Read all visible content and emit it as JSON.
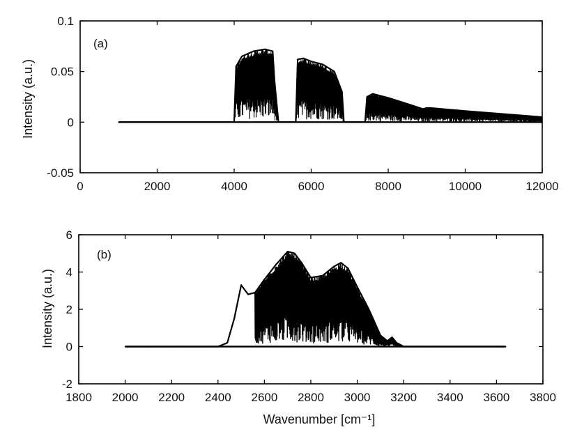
{
  "chart_data": [
    {
      "type": "line",
      "panel_label": "(a)",
      "ylabel": "Intensity (a.u.)",
      "xlabel": "",
      "xlim": [
        0,
        12000
      ],
      "ylim": [
        -0.05,
        0.1
      ],
      "xticks": [
        0,
        2000,
        4000,
        6000,
        8000,
        10000,
        12000
      ],
      "xtick_labels": [
        "0",
        "2000",
        "4000",
        "6000",
        "8000",
        "10000",
        "12000"
      ],
      "yticks": [
        -0.05,
        0,
        0.05,
        0.1
      ],
      "ytick_labels": [
        "-0.05",
        "0",
        "0.05",
        "0.1"
      ],
      "grid": false,
      "line_color": "#000000",
      "series": [
        {
          "x": [
            1000,
            1500,
            2000,
            3000,
            4000,
            4050,
            4200,
            4500,
            4800,
            5000,
            5050,
            5150,
            5600,
            5650,
            5800,
            6000,
            6300,
            6600,
            6800,
            6850,
            7400,
            7450,
            7600,
            8000,
            8500,
            8900,
            9000,
            9100,
            10000,
            11000,
            12000
          ],
          "y": [
            0,
            0,
            0,
            0,
            0,
            0.055,
            0.065,
            0.07,
            0.072,
            0.07,
            0.04,
            0,
            0,
            0.062,
            0.063,
            0.06,
            0.057,
            0.05,
            0.03,
            0,
            0,
            0.025,
            0.028,
            0.024,
            0.018,
            0.013,
            0.014,
            0.014,
            0.011,
            0.008,
            0.005
          ]
        }
      ]
    },
    {
      "type": "line",
      "panel_label": "(b)",
      "ylabel": "Intensity (a.u.)",
      "xlabel": "Wavenumber [cm⁻¹]",
      "xlim": [
        1800,
        3800
      ],
      "ylim": [
        -2,
        6
      ],
      "xticks": [
        1800,
        2000,
        2200,
        2400,
        2600,
        2800,
        3000,
        3200,
        3400,
        3600,
        3800
      ],
      "xtick_labels": [
        "1800",
        "2000",
        "2200",
        "2400",
        "2600",
        "2800",
        "3000",
        "3200",
        "3400",
        "3600",
        "3800"
      ],
      "yticks": [
        -2,
        0,
        2,
        4,
        6
      ],
      "ytick_labels": [
        "-2",
        "0",
        "2",
        "4",
        "6"
      ],
      "grid": false,
      "line_color": "#000000",
      "series": [
        {
          "x": [
            2000,
            2400,
            2440,
            2470,
            2500,
            2530,
            2560,
            2600,
            2650,
            2700,
            2730,
            2760,
            2800,
            2850,
            2900,
            2930,
            2960,
            3000,
            3050,
            3100,
            3130,
            3150,
            3170,
            3200,
            3640
          ],
          "y": [
            0,
            0,
            0.2,
            1.5,
            3.3,
            2.8,
            2.9,
            3.6,
            4.4,
            5.1,
            5.0,
            4.5,
            3.7,
            3.8,
            4.3,
            4.5,
            4.2,
            3.2,
            2.0,
            0.6,
            0.3,
            0.5,
            0.2,
            0,
            0
          ]
        }
      ]
    }
  ]
}
